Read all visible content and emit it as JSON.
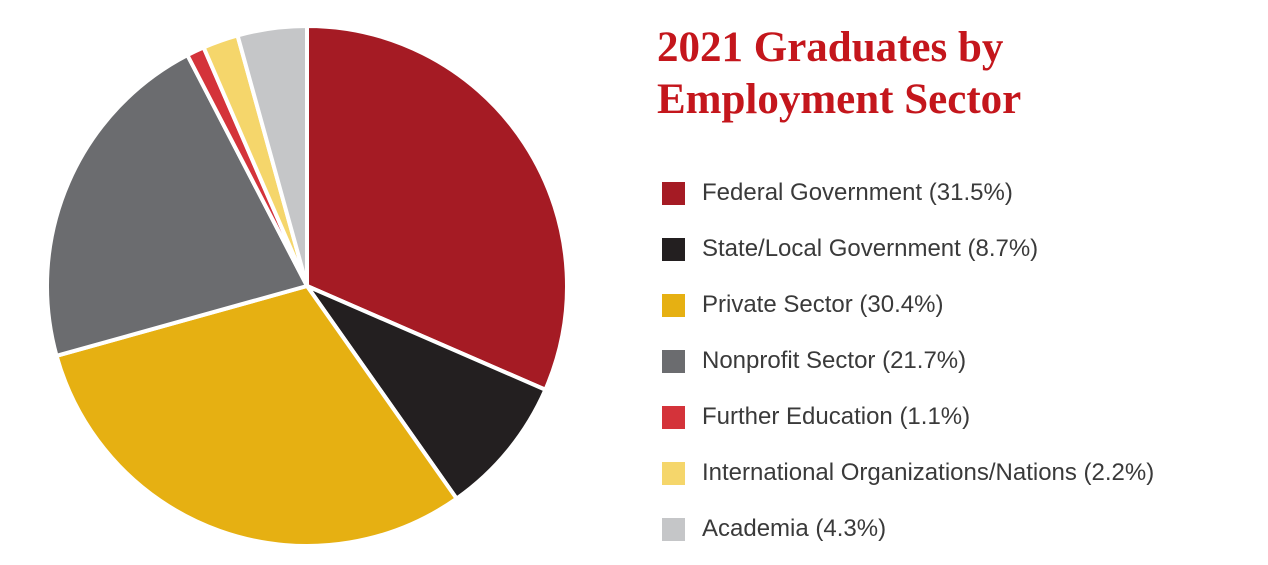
{
  "chart_data": {
    "type": "pie",
    "title": "2021 Graduates by Employment Sector",
    "title_lines": [
      "2021 Graduates by",
      "Employment Sector"
    ],
    "legend_position": "right",
    "slices": [
      {
        "label": "Federal Government",
        "value": 31.5,
        "legend_text": "Federal Government (31.5%)",
        "color": "#a51b24"
      },
      {
        "label": "State/Local Government",
        "value": 8.7,
        "legend_text": "State/Local Government (8.7%)",
        "color": "#231f20"
      },
      {
        "label": "Private Sector",
        "value": 30.4,
        "legend_text": "Private Sector (30.4%)",
        "color": "#e6b012"
      },
      {
        "label": "Nonprofit Sector",
        "value": 21.7,
        "legend_text": "Nonprofit Sector (21.7%)",
        "color": "#6b6c6f"
      },
      {
        "label": "Further Education",
        "value": 1.1,
        "legend_text": "Further Education (1.1%)",
        "color": "#d4333a"
      },
      {
        "label": "International Organizations/Nations",
        "value": 2.2,
        "legend_text": "International Organizations/Nations (2.2%)",
        "color": "#f5d66b"
      },
      {
        "label": "Academia",
        "value": 4.3,
        "legend_text": "Academia (4.3%)",
        "color": "#c5c6c8"
      }
    ]
  }
}
